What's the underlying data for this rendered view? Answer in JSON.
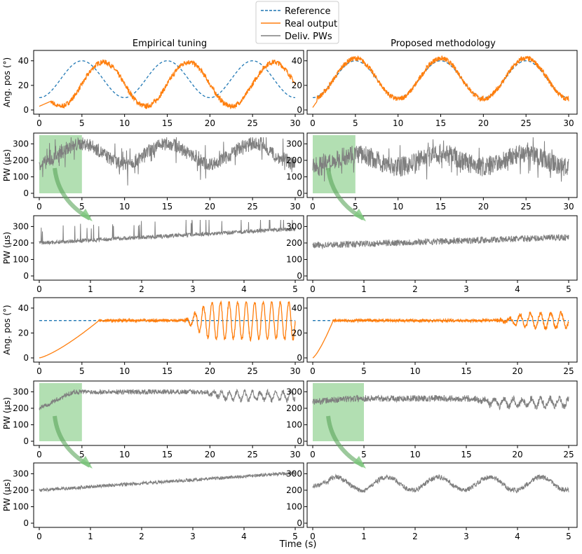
{
  "legend": {
    "entries": [
      {
        "label": "Reference",
        "color": "#1f77b4",
        "style": "dashed"
      },
      {
        "label": "Real output",
        "color": "#ff7f0e",
        "style": "solid"
      },
      {
        "label": "Deliv. PWs",
        "color": "#7f7f7f",
        "style": "solid"
      }
    ]
  },
  "columns": [
    "Empirical tuning",
    "Proposed methodology"
  ],
  "xlabel": "Time (s)",
  "colors": {
    "reference": "#1f77b4",
    "output": "#ff7f0e",
    "pw": "#7f7f7f",
    "highlight": "#7fc97f"
  },
  "chart_data": [
    {
      "type": "line",
      "row": 0,
      "col": 0,
      "ylabel": "Ang. pos (°)",
      "xlim": [
        0,
        30
      ],
      "ylim": [
        0,
        45
      ],
      "xticks": [
        0,
        5,
        10,
        15,
        20,
        25,
        30
      ],
      "yticks": [
        0,
        20,
        40
      ],
      "series": [
        {
          "role": "reference",
          "kind": "sine",
          "min": 10,
          "max": 40,
          "period": 10,
          "peak": 5
        },
        {
          "role": "output",
          "kind": "lagged",
          "min": 3,
          "max": 39,
          "period": 10,
          "peak": 7.5,
          "noise": 2
        }
      ]
    },
    {
      "type": "line",
      "row": 0,
      "col": 1,
      "ylabel": "",
      "xlim": [
        0,
        30
      ],
      "ylim": [
        0,
        45
      ],
      "xticks": [
        0,
        5,
        10,
        15,
        20,
        25,
        30
      ],
      "yticks": [
        0,
        20,
        40
      ],
      "series": [
        {
          "role": "reference",
          "kind": "sine",
          "min": 10,
          "max": 40,
          "period": 10,
          "peak": 5
        },
        {
          "role": "output",
          "kind": "tracked",
          "min": 9,
          "max": 42,
          "period": 10,
          "peak": 5,
          "noise": 2
        }
      ]
    },
    {
      "type": "line",
      "row": 1,
      "col": 0,
      "ylabel": "PW (μs)",
      "xlim": [
        0,
        30
      ],
      "ylim": [
        0,
        340
      ],
      "xticks": [
        0,
        5,
        10,
        15,
        20,
        25,
        30
      ],
      "yticks": [
        0,
        100,
        200,
        300
      ],
      "highlight": [
        0,
        5
      ],
      "series": [
        {
          "role": "pw",
          "kind": "pw_noisy",
          "base": 240,
          "amp": 60,
          "spike": 100,
          "period": 10,
          "noise": 40
        }
      ]
    },
    {
      "type": "line",
      "row": 1,
      "col": 1,
      "ylabel": "",
      "xlim": [
        0,
        30
      ],
      "ylim": [
        0,
        340
      ],
      "xticks": [
        0,
        5,
        10,
        15,
        20,
        25,
        30
      ],
      "yticks": [
        0,
        100,
        200,
        300
      ],
      "highlight": [
        0,
        5
      ],
      "series": [
        {
          "role": "pw",
          "kind": "pw_noisy",
          "base": 200,
          "amp": 40,
          "spike": 100,
          "period": 10,
          "noise": 60
        }
      ]
    },
    {
      "type": "line",
      "row": 2,
      "col": 0,
      "ylabel": "PW (μs)",
      "xlim": [
        0,
        5
      ],
      "ylim": [
        0,
        340
      ],
      "xticks": [
        0,
        1,
        2,
        3,
        4,
        5
      ],
      "yticks": [
        0,
        100,
        200,
        300
      ],
      "series": [
        {
          "role": "pw",
          "kind": "pw_ramp",
          "start": 200,
          "end": 285,
          "noise": 12,
          "spikes": true
        }
      ]
    },
    {
      "type": "line",
      "row": 2,
      "col": 1,
      "ylabel": "",
      "xlim": [
        0,
        5
      ],
      "ylim": [
        0,
        340
      ],
      "xticks": [
        0,
        1,
        2,
        3,
        4,
        5
      ],
      "yticks": [
        0,
        100,
        200,
        300
      ],
      "series": [
        {
          "role": "pw",
          "kind": "pw_ramp",
          "start": 185,
          "end": 235,
          "noise": 20,
          "spikes": false
        }
      ]
    },
    {
      "type": "line",
      "row": 3,
      "col": 0,
      "ylabel": "Ang. pos (°)",
      "xlim": [
        0,
        30
      ],
      "ylim": [
        0,
        45
      ],
      "xticks": [
        0,
        5,
        10,
        15,
        20,
        25,
        30
      ],
      "yticks": [
        0,
        20,
        40
      ],
      "series": [
        {
          "role": "reference",
          "kind": "const",
          "value": 30,
          "from": 0
        },
        {
          "role": "output",
          "kind": "step_osc",
          "rise": 7,
          "osc_start": 17,
          "osc_amp": 15,
          "value": 30
        }
      ]
    },
    {
      "type": "line",
      "row": 3,
      "col": 1,
      "ylabel": "",
      "xlim": [
        0,
        25
      ],
      "ylim": [
        0,
        45
      ],
      "xticks": [
        0,
        5,
        10,
        15,
        20,
        25
      ],
      "yticks": [
        0,
        20,
        40
      ],
      "series": [
        {
          "role": "reference",
          "kind": "const",
          "value": 30,
          "from": 0
        },
        {
          "role": "output",
          "kind": "step_osc",
          "rise": 2,
          "osc_start": 18,
          "osc_amp": 6,
          "value": 30
        }
      ]
    },
    {
      "type": "line",
      "row": 4,
      "col": 0,
      "ylabel": "PW (μs)",
      "xlim": [
        0,
        30
      ],
      "ylim": [
        0,
        340
      ],
      "xticks": [
        0,
        5,
        10,
        15,
        20,
        25,
        30
      ],
      "yticks": [
        0,
        100,
        200,
        300
      ],
      "highlight": [
        0,
        5
      ],
      "series": [
        {
          "role": "pw",
          "kind": "pw_step",
          "start": 200,
          "plateau": 300,
          "osc_start": 19,
          "osc_amp": 50,
          "noise": 15
        }
      ]
    },
    {
      "type": "line",
      "row": 4,
      "col": 1,
      "ylabel": "",
      "xlim": [
        0,
        25
      ],
      "ylim": [
        0,
        340
      ],
      "xticks": [
        0,
        5,
        10,
        15,
        20,
        25
      ],
      "yticks": [
        0,
        100,
        200,
        300
      ],
      "highlight": [
        0,
        5
      ],
      "series": [
        {
          "role": "pw",
          "kind": "pw_step",
          "start": 240,
          "plateau": 260,
          "osc_start": 15,
          "osc_amp": 50,
          "noise": 20
        }
      ]
    },
    {
      "type": "line",
      "row": 5,
      "col": 0,
      "ylabel": "PW (μs)",
      "xlim": [
        0,
        5
      ],
      "ylim": [
        0,
        340
      ],
      "xticks": [
        0,
        1,
        2,
        3,
        4,
        5
      ],
      "yticks": [
        0,
        100,
        200,
        300
      ],
      "series": [
        {
          "role": "pw",
          "kind": "pw_ramp",
          "start": 200,
          "end": 305,
          "noise": 10,
          "spikes": false
        }
      ]
    },
    {
      "type": "line",
      "row": 5,
      "col": 1,
      "ylabel": "",
      "xlim": [
        0,
        5
      ],
      "ylim": [
        0,
        340
      ],
      "xticks": [
        0,
        1,
        2,
        3,
        4,
        5
      ],
      "yticks": [
        0,
        100,
        200,
        300
      ],
      "series": [
        {
          "role": "pw",
          "kind": "pw_wave",
          "base": 240,
          "amp": 40,
          "period": 1,
          "noise": 15
        }
      ]
    }
  ]
}
